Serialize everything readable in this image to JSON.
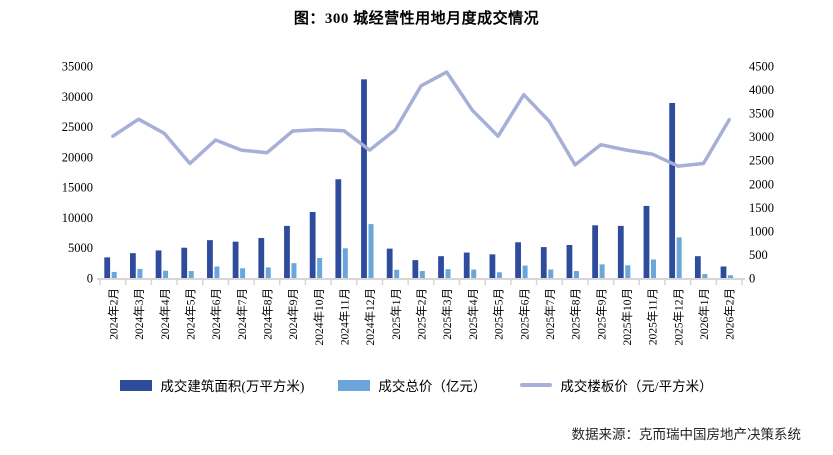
{
  "title": "图：300 城经营性用地月度成交情况",
  "source": "数据来源：克而瑞中国房地产决策系统",
  "colors": {
    "bar_dark": "#2F4B9C",
    "bar_light": "#6BA6DB",
    "line": "#A6AFD8",
    "axis": "#D6D6D6",
    "text": "#000000"
  },
  "chart_data": {
    "type": "bar",
    "subtype": "dual-axis bar+line combo",
    "title": "图：300 城经营性用地月度成交情况",
    "grid": false,
    "legend_position": "bottom",
    "categories": [
      "2024年2月",
      "2024年3月",
      "2024年4月",
      "2024年5月",
      "2024年6月",
      "2024年7月",
      "2024年8月",
      "2024年9月",
      "2024年10月",
      "2024年11月",
      "2024年12月",
      "2025年1月",
      "2025年2月",
      "2025年3月",
      "2025年4月",
      "2025年5月",
      "2025年6月",
      "2025年7月",
      "2025年8月",
      "2025年9月",
      "2025年10月",
      "2025年11月",
      "2025年12月",
      "2026年1月",
      "2026年2月"
    ],
    "left_axis": {
      "min": 0,
      "max": 35000,
      "step": 5000
    },
    "right_axis": {
      "min": 0,
      "max": 4500,
      "step": 500
    },
    "series": [
      {
        "name": "成交建筑面积(万平方米)",
        "type": "bar",
        "axis": "left",
        "color": "#2F4B9C",
        "values": [
          3400,
          4100,
          4550,
          5000,
          6250,
          6000,
          6600,
          8600,
          10900,
          16300,
          32800,
          4850,
          2950,
          3600,
          4200,
          3900,
          5900,
          5100,
          5450,
          8700,
          8600,
          11900,
          28900,
          3600,
          1900
        ]
      },
      {
        "name": "成交总价（亿元）",
        "type": "bar",
        "axis": "left",
        "color": "#6BA6DB",
        "values": [
          1000,
          1500,
          1200,
          1150,
          1900,
          1600,
          1750,
          2450,
          3300,
          4900,
          8900,
          1350,
          1150,
          1450,
          1400,
          950,
          2050,
          1400,
          1150,
          2250,
          2100,
          3050,
          6700,
          650,
          450
        ]
      },
      {
        "name": "成交楼板价（元/平方米）",
        "type": "line",
        "axis": "right",
        "color": "#A6AFD8",
        "values": [
          3010,
          3370,
          3070,
          2430,
          2930,
          2715,
          2660,
          3120,
          3150,
          3125,
          2715,
          3150,
          4080,
          4370,
          3560,
          3010,
          3890,
          3320,
          2400,
          2830,
          2715,
          2630,
          2375,
          2430,
          3360
        ]
      }
    ]
  }
}
